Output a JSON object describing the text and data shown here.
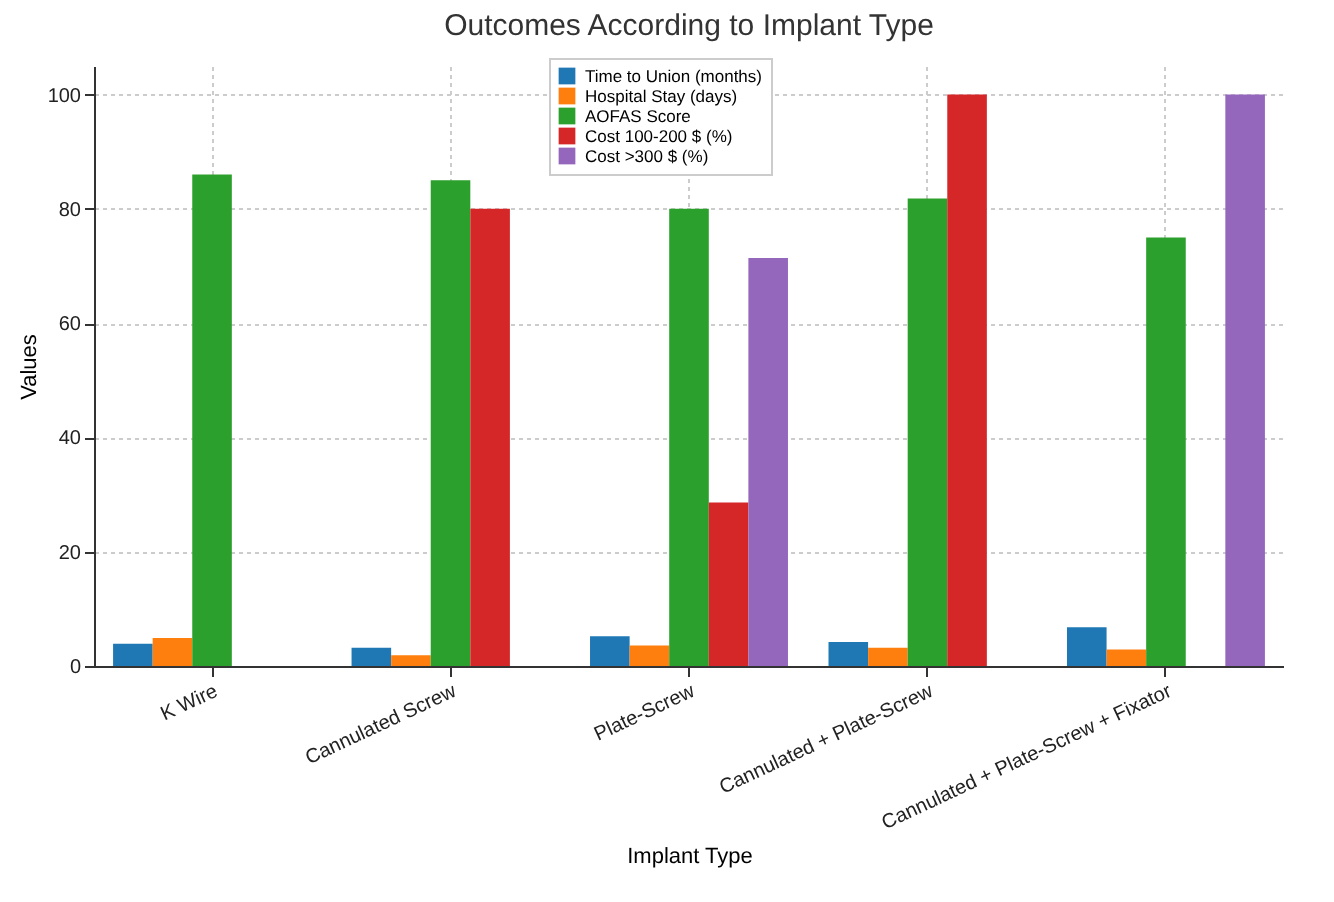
{
  "chart_data": {
    "type": "bar",
    "title": "Outcomes According to Implant Type",
    "xlabel": "Implant Type",
    "ylabel": "Values",
    "categories": [
      "K Wire",
      "Cannulated Screw",
      "Plate-Screw",
      "Cannulated + Plate-Screw",
      "Cannulated + Plate-Screw + Fixator"
    ],
    "series": [
      {
        "name": "Time to Union (months)",
        "color": "#1f77b4",
        "values": [
          3.9,
          3.2,
          5.2,
          4.2,
          6.8
        ]
      },
      {
        "name": "Hospital Stay (days)",
        "color": "#ff7f0e",
        "values": [
          4.9,
          1.9,
          3.6,
          3.2,
          2.9
        ]
      },
      {
        "name": "AOFAS Score",
        "color": "#2ca02c",
        "values": [
          86,
          85,
          80,
          81.8,
          75
        ]
      },
      {
        "name": "Cost 100-200 $ (%)",
        "color": "#d62728",
        "values": [
          null,
          80,
          28.6,
          100,
          null
        ]
      },
      {
        "name": "Cost >300 $ (%)",
        "color": "#9467bd",
        "values": [
          null,
          null,
          71.4,
          null,
          100
        ]
      }
    ],
    "ylim": [
      0,
      105
    ],
    "yticks": [
      0,
      20,
      40,
      60,
      80,
      100
    ],
    "grid": true,
    "legend": "top"
  }
}
